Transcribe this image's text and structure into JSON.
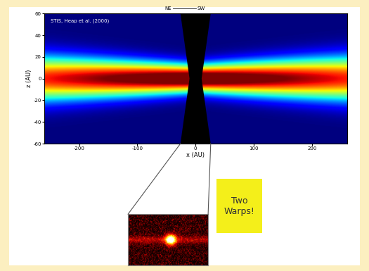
{
  "chart_data": {
    "type": "image",
    "annotation": "STIS, Heap et al. (2000)",
    "direction_labels": [
      "NE",
      "SW"
    ],
    "x_label": "x (AU)",
    "y_label": "z (AU)",
    "xlim": [
      -260,
      260
    ],
    "ylim": [
      -60,
      60
    ],
    "xticks": [
      -200,
      -100,
      0,
      100,
      200
    ],
    "yticks": [
      -60,
      -40,
      -20,
      0,
      20,
      40,
      60
    ],
    "callout": [
      "Two",
      "Warps!"
    ]
  }
}
